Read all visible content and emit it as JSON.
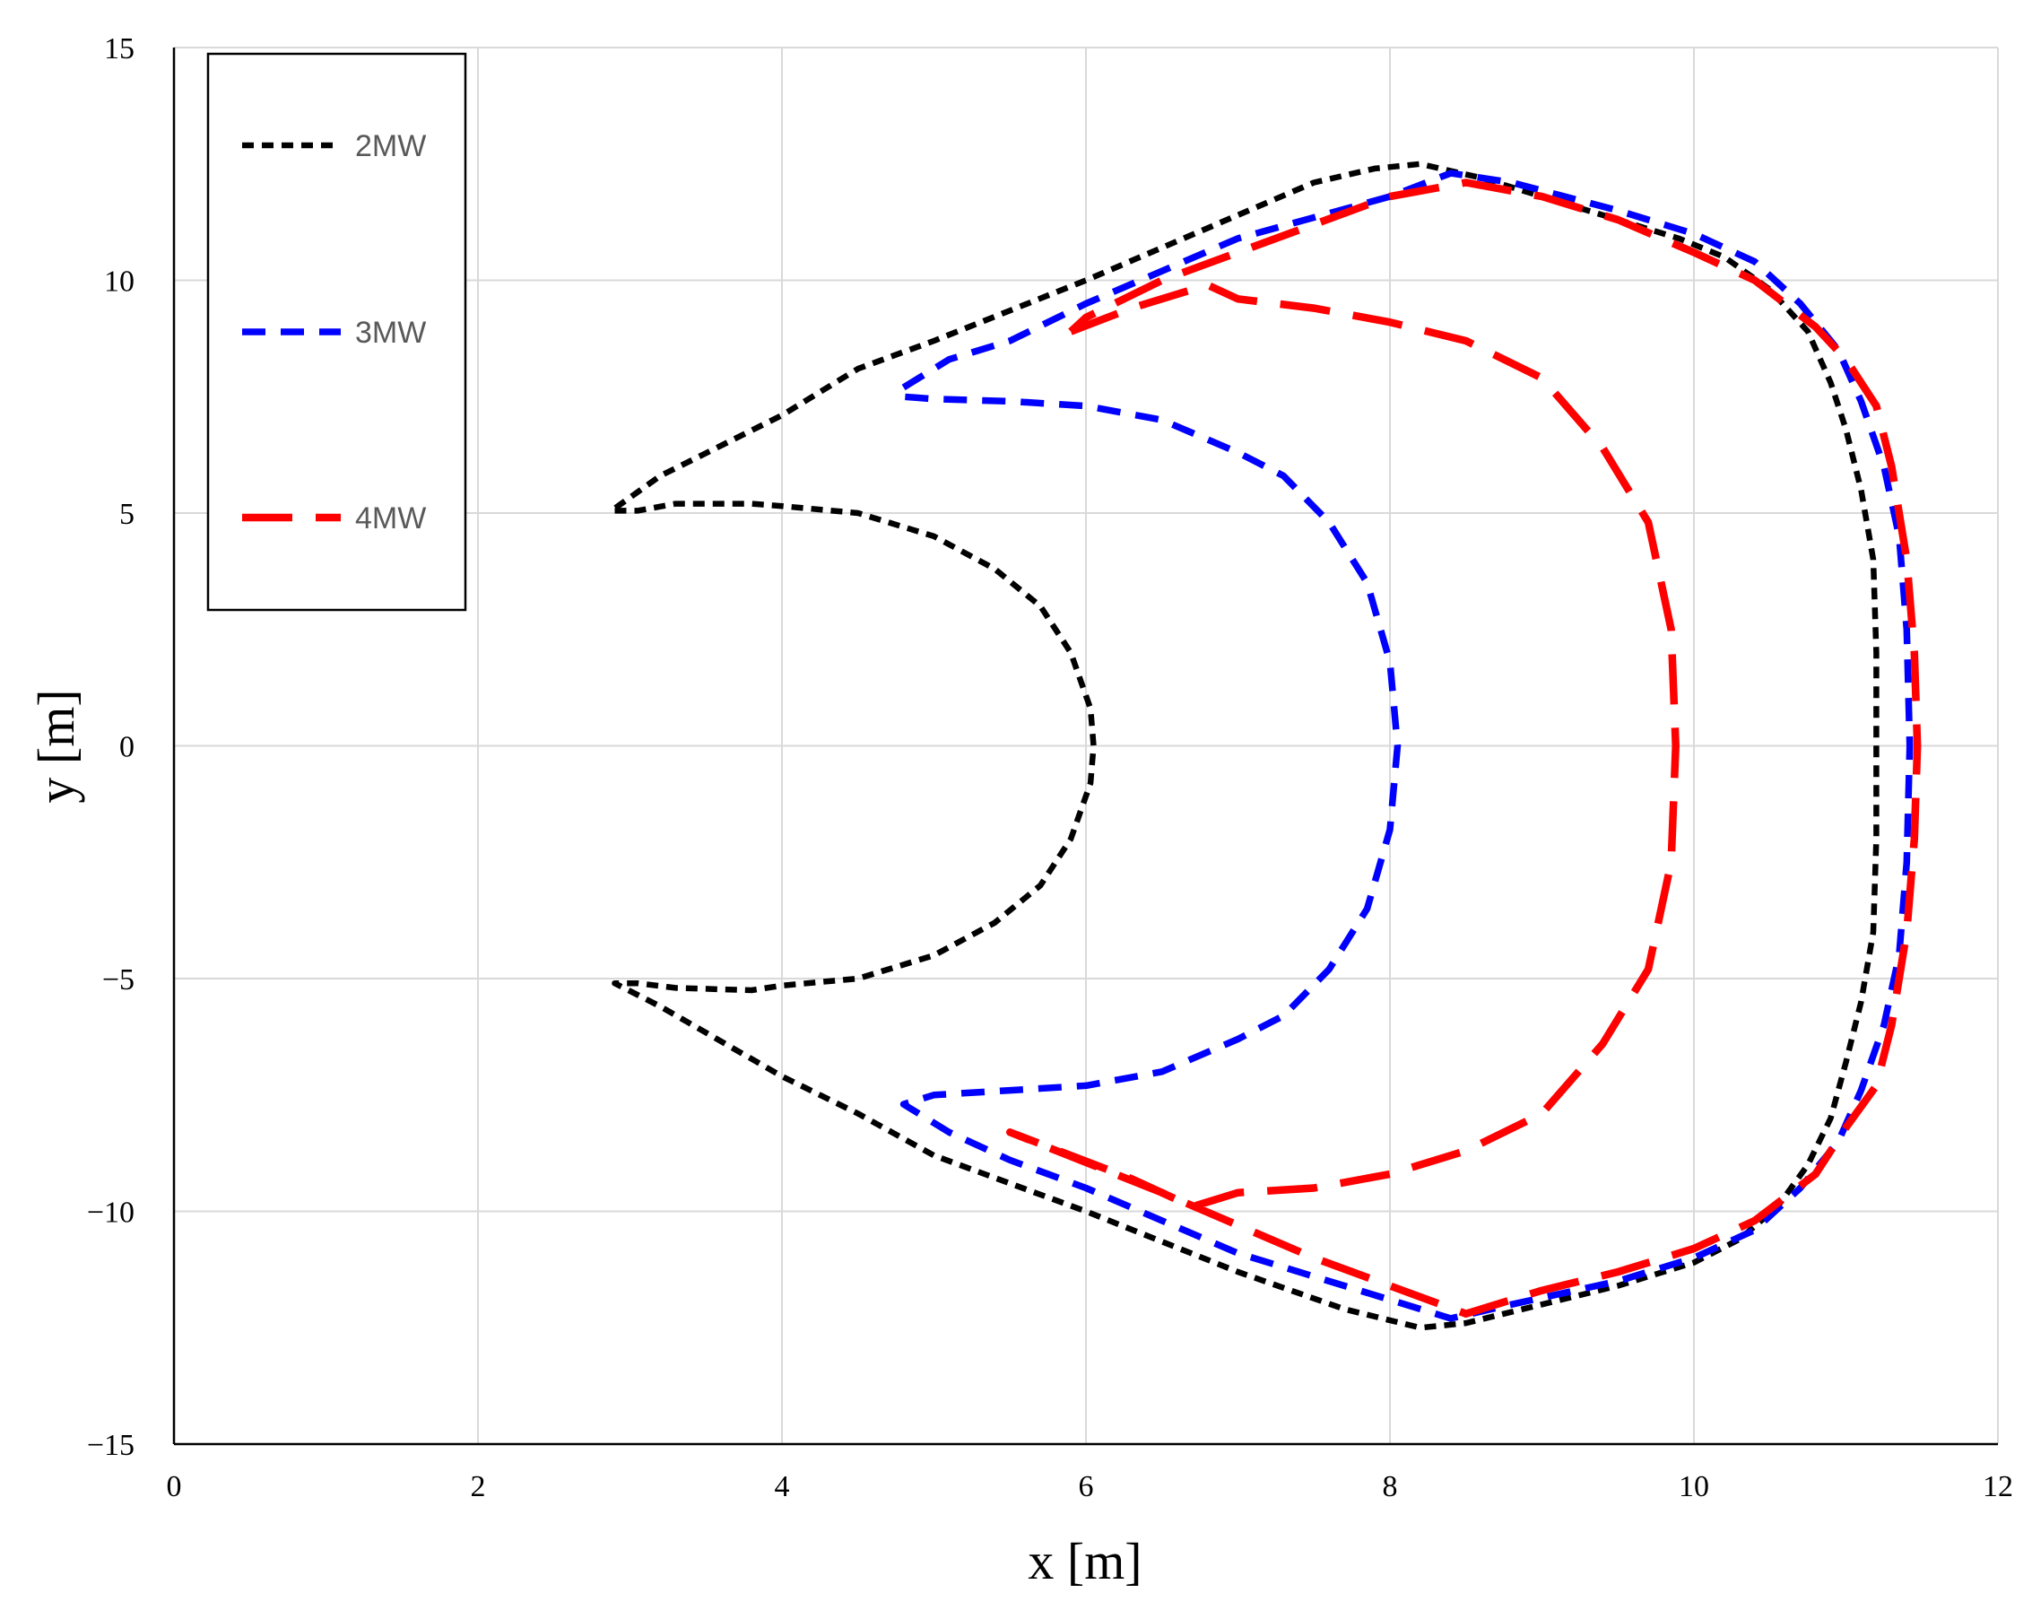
{
  "chart_data": {
    "type": "line",
    "title": "",
    "xlabel": "x [m]",
    "ylabel": "y [m]",
    "xlim": [
      0,
      12
    ],
    "ylim": [
      -15,
      15
    ],
    "xticks": [
      "0",
      "2",
      "4",
      "6",
      "8",
      "10",
      "12"
    ],
    "yticks": [
      "15",
      "10",
      "5",
      "0",
      "−5",
      "−10",
      "−15"
    ],
    "grid": true,
    "legend_position": "top-left",
    "series": [
      {
        "name": "2MW",
        "color": "#000000",
        "dash": "short-dash",
        "points": [
          [
            2.9,
            5.05
          ],
          [
            3.05,
            5.05
          ],
          [
            3.3,
            5.2
          ],
          [
            3.8,
            5.2
          ],
          [
            4.0,
            5.15
          ],
          [
            4.5,
            5.0
          ],
          [
            5.0,
            4.5
          ],
          [
            5.4,
            3.8
          ],
          [
            5.7,
            3.0
          ],
          [
            5.9,
            2.0
          ],
          [
            6.03,
            0.8
          ],
          [
            6.05,
            0
          ],
          [
            6.03,
            -0.8
          ],
          [
            5.9,
            -2.0
          ],
          [
            5.7,
            -3.0
          ],
          [
            5.4,
            -3.8
          ],
          [
            5.0,
            -4.5
          ],
          [
            4.5,
            -5.0
          ],
          [
            4.0,
            -5.15
          ],
          [
            3.8,
            -5.25
          ],
          [
            3.3,
            -5.2
          ],
          [
            3.05,
            -5.1
          ],
          [
            2.9,
            -5.1
          ],
          [
            3.2,
            -5.6
          ],
          [
            4.0,
            -7.1
          ],
          [
            4.5,
            -7.9
          ],
          [
            5.0,
            -8.8
          ],
          [
            6.0,
            -10.0
          ],
          [
            7.0,
            -11.3
          ],
          [
            7.7,
            -12.1
          ],
          [
            8.2,
            -12.5
          ],
          [
            8.5,
            -12.4
          ],
          [
            9.0,
            -12.0
          ],
          [
            9.5,
            -11.6
          ],
          [
            10.0,
            -11.1
          ],
          [
            10.3,
            -10.6
          ],
          [
            10.55,
            -9.9
          ],
          [
            10.75,
            -9.0
          ],
          [
            10.9,
            -8.0
          ],
          [
            11.0,
            -6.8
          ],
          [
            11.1,
            -5.5
          ],
          [
            11.18,
            -4.0
          ],
          [
            11.2,
            -2.0
          ],
          [
            11.2,
            0
          ],
          [
            11.2,
            2.0
          ],
          [
            11.18,
            4.0
          ],
          [
            11.1,
            5.5
          ],
          [
            11.0,
            6.8
          ],
          [
            10.9,
            7.8
          ],
          [
            10.75,
            8.9
          ],
          [
            10.5,
            9.8
          ],
          [
            10.2,
            10.5
          ],
          [
            9.9,
            10.9
          ],
          [
            9.5,
            11.3
          ],
          [
            9.0,
            11.8
          ],
          [
            8.6,
            12.2
          ],
          [
            8.2,
            12.5
          ],
          [
            7.9,
            12.4
          ],
          [
            7.5,
            12.1
          ],
          [
            7.0,
            11.4
          ],
          [
            6.0,
            10.0
          ],
          [
            5.0,
            8.7
          ],
          [
            4.5,
            8.1
          ],
          [
            4.0,
            7.1
          ],
          [
            3.2,
            5.8
          ],
          [
            2.9,
            5.1
          ]
        ]
      },
      {
        "name": "3MW",
        "color": "#0000ff",
        "dash": "medium-dash",
        "points": [
          [
            4.8,
            7.7
          ],
          [
            5.1,
            8.3
          ],
          [
            5.5,
            8.7
          ],
          [
            6.0,
            9.5
          ],
          [
            7.0,
            10.9
          ],
          [
            8.0,
            11.8
          ],
          [
            8.4,
            12.3
          ],
          [
            8.8,
            12.1
          ],
          [
            9.5,
            11.5
          ],
          [
            10.0,
            11.0
          ],
          [
            10.4,
            10.4
          ],
          [
            10.7,
            9.5
          ],
          [
            10.95,
            8.5
          ],
          [
            11.1,
            7.4
          ],
          [
            11.25,
            6.0
          ],
          [
            11.35,
            4.5
          ],
          [
            11.4,
            2.5
          ],
          [
            11.42,
            0
          ],
          [
            11.4,
            -2.5
          ],
          [
            11.35,
            -4.5
          ],
          [
            11.25,
            -6.0
          ],
          [
            11.1,
            -7.4
          ],
          [
            10.95,
            -8.5
          ],
          [
            10.7,
            -9.5
          ],
          [
            10.4,
            -10.4
          ],
          [
            10.0,
            -11.0
          ],
          [
            9.5,
            -11.5
          ],
          [
            8.8,
            -12.0
          ],
          [
            8.4,
            -12.3
          ],
          [
            8.0,
            -11.9
          ],
          [
            7.0,
            -10.9
          ],
          [
            6.0,
            -9.5
          ],
          [
            5.5,
            -8.9
          ],
          [
            5.1,
            -8.3
          ],
          [
            4.8,
            -7.7
          ],
          [
            5.0,
            -7.5
          ],
          [
            5.5,
            -7.4
          ],
          [
            6.0,
            -7.3
          ],
          [
            6.5,
            -7.0
          ],
          [
            7.0,
            -6.3
          ],
          [
            7.3,
            -5.8
          ],
          [
            7.6,
            -4.8
          ],
          [
            7.85,
            -3.5
          ],
          [
            8.0,
            -1.8
          ],
          [
            8.05,
            0
          ],
          [
            8.0,
            1.8
          ],
          [
            7.85,
            3.5
          ],
          [
            7.6,
            4.8
          ],
          [
            7.3,
            5.8
          ],
          [
            7.0,
            6.3
          ],
          [
            6.5,
            7.0
          ],
          [
            6.0,
            7.3
          ],
          [
            5.5,
            7.4
          ],
          [
            5.0,
            7.45
          ],
          [
            4.8,
            7.5
          ]
        ]
      },
      {
        "name": "4MW",
        "color": "#ff0000",
        "dash": "long-dash",
        "points": [
          [
            5.9,
            8.9
          ],
          [
            6.3,
            9.4
          ],
          [
            6.8,
            9.9
          ],
          [
            7.0,
            9.6
          ],
          [
            7.5,
            9.4
          ],
          [
            8.0,
            9.1
          ],
          [
            8.5,
            8.7
          ],
          [
            9.0,
            7.9
          ],
          [
            9.4,
            6.4
          ],
          [
            9.7,
            4.8
          ],
          [
            9.85,
            2.5
          ],
          [
            9.88,
            0
          ],
          [
            9.85,
            -2.5
          ],
          [
            9.7,
            -4.8
          ],
          [
            9.4,
            -6.4
          ],
          [
            9.0,
            -7.9
          ],
          [
            8.5,
            -8.7
          ],
          [
            8.0,
            -9.2
          ],
          [
            7.5,
            -9.5
          ],
          [
            7.0,
            -9.6
          ],
          [
            6.7,
            -9.9
          ],
          [
            6.3,
            -9.3
          ],
          [
            5.5,
            -8.3
          ],
          [
            6.5,
            -9.6
          ],
          [
            7.5,
            -11.0
          ],
          [
            8.0,
            -11.6
          ],
          [
            8.5,
            -12.2
          ],
          [
            9.0,
            -11.7
          ],
          [
            9.5,
            -11.3
          ],
          [
            10.0,
            -10.8
          ],
          [
            10.4,
            -10.2
          ],
          [
            10.8,
            -9.2
          ],
          [
            11.0,
            -8.2
          ],
          [
            11.2,
            -7.3
          ],
          [
            11.3,
            -6.0
          ],
          [
            11.4,
            -4.0
          ],
          [
            11.45,
            -2.0
          ],
          [
            11.47,
            0
          ],
          [
            11.45,
            2.0
          ],
          [
            11.4,
            4.0
          ],
          [
            11.3,
            6.0
          ],
          [
            11.2,
            7.3
          ],
          [
            11.0,
            8.3
          ],
          [
            10.8,
            9.0
          ],
          [
            10.4,
            10.0
          ],
          [
            10.0,
            10.6
          ],
          [
            9.5,
            11.3
          ],
          [
            9.0,
            11.8
          ],
          [
            8.5,
            12.1
          ],
          [
            8.0,
            11.8
          ],
          [
            7.5,
            11.2
          ],
          [
            7.0,
            10.6
          ],
          [
            6.5,
            10.0
          ],
          [
            6.0,
            9.2
          ],
          [
            5.9,
            8.9
          ]
        ]
      }
    ]
  }
}
